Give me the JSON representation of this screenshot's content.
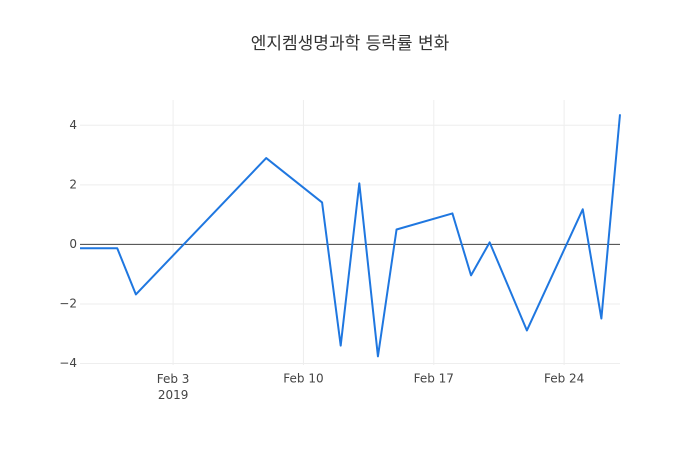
{
  "chart_data": {
    "type": "line",
    "title": "엔지켐생명과학 등락률 변화",
    "x": [
      "2019-01-29",
      "2019-01-31",
      "2019-02-01",
      "2019-02-08",
      "2019-02-11",
      "2019-02-12",
      "2019-02-13",
      "2019-02-14",
      "2019-02-15",
      "2019-02-18",
      "2019-02-19",
      "2019-02-20",
      "2019-02-22",
      "2019-02-25",
      "2019-02-26",
      "2019-02-27"
    ],
    "series": [
      {
        "name": "등락률",
        "color": "#1f77e0",
        "values": [
          -0.13,
          -0.13,
          -1.68,
          2.9,
          1.41,
          -3.4,
          2.05,
          -3.76,
          0.5,
          1.04,
          -1.04,
          0.07,
          -2.89,
          1.18,
          -2.49,
          4.37
        ]
      }
    ],
    "xlim": [
      "2019-01-29",
      "2019-02-27"
    ],
    "xticks": [
      {
        "value": "2019-02-03",
        "label": "Feb 3\n2019"
      },
      {
        "value": "2019-02-10",
        "label": "Feb 10"
      },
      {
        "value": "2019-02-17",
        "label": "Feb 17"
      },
      {
        "value": "2019-02-24",
        "label": "Feb 24"
      }
    ],
    "ylim": [
      -4.05,
      4.85
    ],
    "yticks": [
      {
        "value": -4,
        "label": "−4"
      },
      {
        "value": -2,
        "label": "−2"
      },
      0,
      2,
      4
    ],
    "grid": true,
    "zeroline": true
  }
}
